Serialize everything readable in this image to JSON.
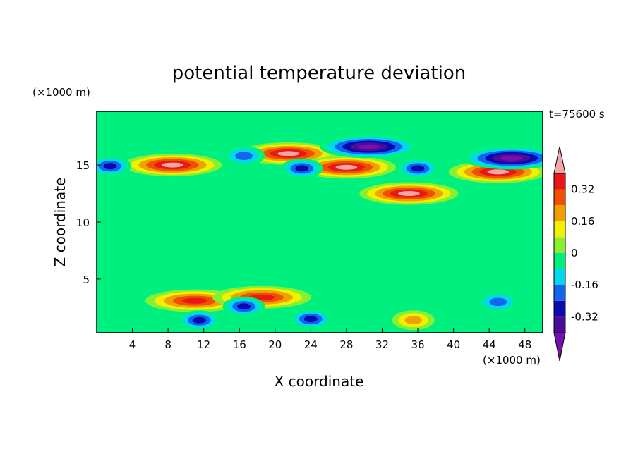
{
  "chart_data": {
    "type": "heatmap",
    "title": "potential temperature deviation",
    "xlabel": "X coordinate",
    "ylabel": "Z coordinate",
    "x_unit": "(×1000 m)",
    "y_unit": "(×1000 m)",
    "time_label": "t=75600 s",
    "xlim": [
      0,
      50
    ],
    "ylim": [
      0.3,
      19.7
    ],
    "x_ticks": [
      4,
      8,
      12,
      16,
      20,
      24,
      28,
      32,
      36,
      40,
      44,
      48
    ],
    "y_ticks": [
      5,
      10,
      15
    ],
    "colorbar": {
      "levels": [
        -0.4,
        -0.32,
        -0.24,
        -0.16,
        -0.08,
        0,
        0.08,
        0.16,
        0.24,
        0.32,
        0.4
      ],
      "tick_labels": [
        "-0.32",
        "-0.16",
        "0",
        "0.16",
        "0.32"
      ],
      "tick_values": [
        -0.32,
        -0.16,
        0,
        0.16,
        0.32
      ],
      "colors": [
        "#7a0fb0",
        "#4b0c9a",
        "#0a0ab0",
        "#1464f0",
        "#00d8f0",
        "#00f080",
        "#88f030",
        "#f0f000",
        "#f0a000",
        "#f05000",
        "#e81818",
        "#f4a6a6"
      ],
      "extend": "both"
    },
    "features": [
      {
        "x": 8.5,
        "z": 15.0,
        "value": 0.45
      },
      {
        "x": 21.5,
        "z": 16.0,
        "value": 0.45
      },
      {
        "x": 28.0,
        "z": 14.8,
        "value": 0.45
      },
      {
        "x": 45.0,
        "z": 14.4,
        "value": 0.45
      },
      {
        "x": 35.0,
        "z": 12.5,
        "value": 0.45
      },
      {
        "x": 30.5,
        "z": 16.6,
        "value": -0.45
      },
      {
        "x": 46.5,
        "z": 15.6,
        "value": -0.45
      },
      {
        "x": 1.5,
        "z": 14.9,
        "value": -0.35
      },
      {
        "x": 23.0,
        "z": 14.7,
        "value": -0.35
      },
      {
        "x": 36.0,
        "z": 14.7,
        "value": -0.35
      },
      {
        "x": 16.5,
        "z": 15.8,
        "value": -0.2
      },
      {
        "x": 11.0,
        "z": 3.1,
        "value": 0.4
      },
      {
        "x": 18.5,
        "z": 3.4,
        "value": 0.4
      },
      {
        "x": 24.0,
        "z": 1.5,
        "value": -0.32
      },
      {
        "x": 11.5,
        "z": 1.4,
        "value": -0.32
      },
      {
        "x": 16.5,
        "z": 2.6,
        "value": -0.32
      },
      {
        "x": 35.5,
        "z": 1.4,
        "value": 0.24
      },
      {
        "x": 45.0,
        "z": 3.0,
        "value": -0.24
      }
    ]
  }
}
